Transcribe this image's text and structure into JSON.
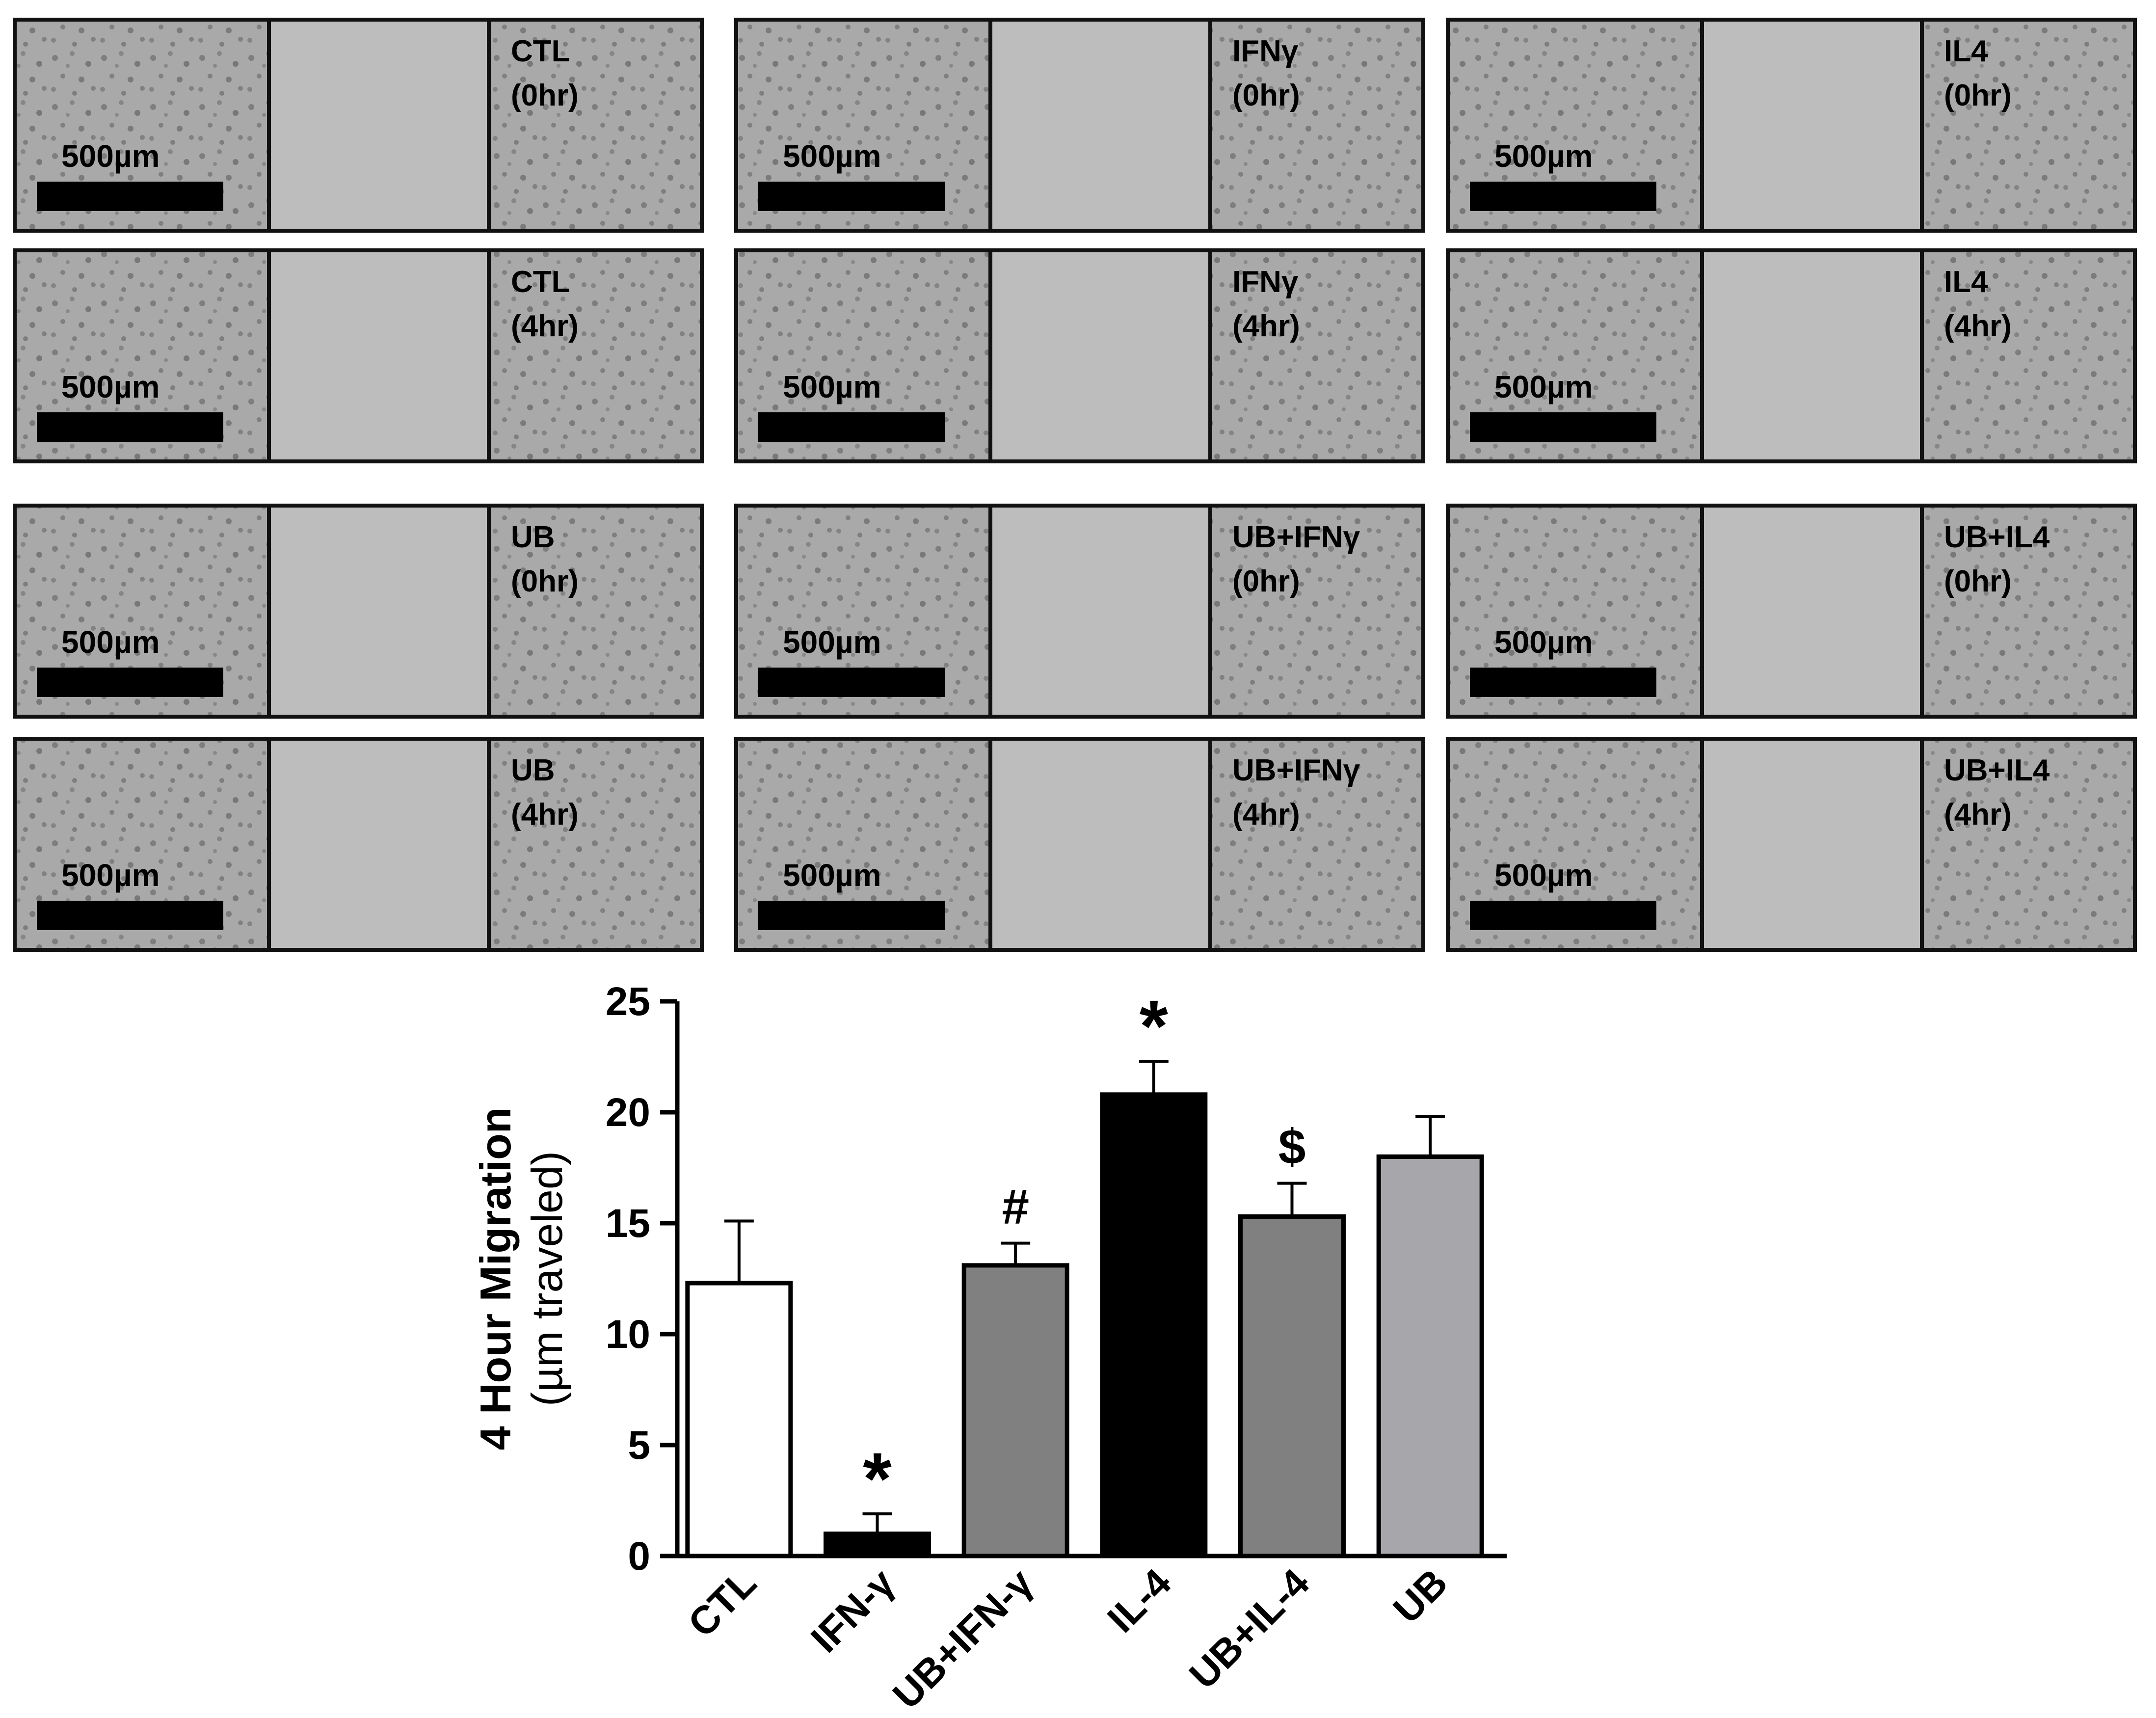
{
  "micrographs": [
    {
      "label": "CTL",
      "time": "(0hr)",
      "scale_label": "500µm"
    },
    {
      "label": "CTL",
      "time": "(4hr)",
      "scale_label": "500µm"
    },
    {
      "label": "IFNγ",
      "time": "(0hr)",
      "scale_label": "500µm"
    },
    {
      "label": "IFNγ",
      "time": "(4hr)",
      "scale_label": "500µm"
    },
    {
      "label": "IL4",
      "time": "(0hr)",
      "scale_label": "500µm"
    },
    {
      "label": "IL4",
      "time": "(4hr)",
      "scale_label": "500µm"
    },
    {
      "label": "UB",
      "time": "(0hr)",
      "scale_label": "500µm"
    },
    {
      "label": "UB",
      "time": "(4hr)",
      "scale_label": "500µm"
    },
    {
      "label": "UB+IFNγ",
      "time": "(0hr)",
      "scale_label": "500µm"
    },
    {
      "label": "UB+IFNγ",
      "time": "(4hr)",
      "scale_label": "500µm"
    },
    {
      "label": "UB+IL4",
      "time": "(0hr)",
      "scale_label": "500µm"
    },
    {
      "label": "UB+IL4",
      "time": "(4hr)",
      "scale_label": "500µm"
    }
  ],
  "chart_data": {
    "type": "bar",
    "categories": [
      "CTL",
      "IFN-γ",
      "UB+IFN-γ",
      "IL-4",
      "UB+IL-4",
      "UB"
    ],
    "values": [
      12.3,
      1.0,
      13.1,
      20.8,
      15.3,
      18.0
    ],
    "errors": [
      2.8,
      0.9,
      1.0,
      1.5,
      1.5,
      1.8
    ],
    "significance": [
      "",
      "*",
      "#",
      "*",
      "$",
      ""
    ],
    "bar_colors": [
      "#ffffff",
      "#000000",
      "#808080",
      "#000000",
      "#808080",
      "#a6a6ab"
    ],
    "ylabel_line1": "4 Hour Migration",
    "ylabel_line2": "(µm traveled)",
    "yticks": [
      "0",
      "5",
      "10",
      "15",
      "20",
      "25"
    ],
    "ylim": [
      0,
      25
    ],
    "xlabel": ""
  }
}
